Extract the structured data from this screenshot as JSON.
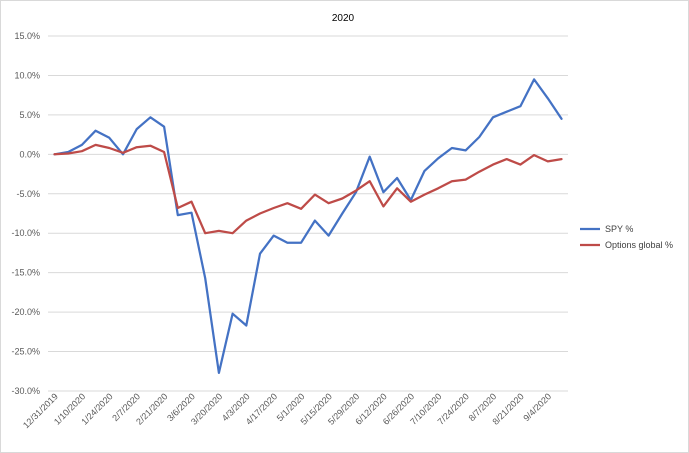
{
  "chart_data": {
    "type": "line",
    "title": "2020",
    "xlabel": "",
    "ylabel": "",
    "ylim": [
      -0.3,
      0.15
    ],
    "y_tick_values": [
      0.15,
      0.1,
      0.05,
      0.0,
      -0.05,
      -0.1,
      -0.15,
      -0.2,
      -0.25,
      -0.3
    ],
    "y_tick_labels": [
      "15.0%",
      "10.0%",
      "5.0%",
      "0.0%",
      "-5.0%",
      "-10.0%",
      "-15.0%",
      "-20.0%",
      "-25.0%",
      "-30.0%"
    ],
    "x": [
      "12/31/2019",
      "1/3/2020",
      "1/10/2020",
      "1/17/2020",
      "1/24/2020",
      "1/31/2020",
      "2/7/2020",
      "2/14/2020",
      "2/21/2020",
      "2/28/2020",
      "3/6/2020",
      "3/13/2020",
      "3/20/2020",
      "3/27/2020",
      "4/3/2020",
      "4/10/2020",
      "4/17/2020",
      "4/24/2020",
      "5/1/2020",
      "5/8/2020",
      "5/15/2020",
      "5/22/2020",
      "5/29/2020",
      "6/5/2020",
      "6/12/2020",
      "6/19/2020",
      "6/26/2020",
      "7/3/2020",
      "7/10/2020",
      "7/17/2020",
      "7/24/2020",
      "7/31/2020",
      "8/7/2020",
      "8/14/2020",
      "8/21/2020",
      "8/28/2020",
      "9/4/2020",
      "9/11/2020"
    ],
    "x_tick_labels": [
      "12/31/2019",
      "1/10/2020",
      "1/24/2020",
      "2/7/2020",
      "2/21/2020",
      "3/6/2020",
      "3/20/2020",
      "4/3/2020",
      "4/17/2020",
      "5/1/2020",
      "5/15/2020",
      "5/29/2020",
      "6/12/2020",
      "6/26/2020",
      "7/10/2020",
      "7/24/2020",
      "8/7/2020",
      "8/21/2020",
      "9/4/2020"
    ],
    "series": [
      {
        "name": "SPY %",
        "color": "#4472c4",
        "values": [
          0.0,
          0.003,
          0.012,
          0.03,
          0.021,
          0.0,
          0.032,
          0.047,
          0.035,
          -0.077,
          -0.074,
          -0.157,
          -0.277,
          -0.202,
          -0.217,
          -0.126,
          -0.103,
          -0.112,
          -0.112,
          -0.084,
          -0.103,
          -0.075,
          -0.048,
          -0.003,
          -0.048,
          -0.03,
          -0.058,
          -0.021,
          -0.005,
          0.008,
          0.005,
          0.022,
          0.047,
          0.054,
          0.061,
          0.095,
          0.071,
          0.045
        ]
      },
      {
        "name": "Options global %",
        "color": "#be4b48",
        "values": [
          0.0,
          0.001,
          0.004,
          0.012,
          0.008,
          0.002,
          0.009,
          0.011,
          0.003,
          -0.068,
          -0.06,
          -0.1,
          -0.097,
          -0.1,
          -0.084,
          -0.075,
          -0.068,
          -0.062,
          -0.069,
          -0.051,
          -0.062,
          -0.056,
          -0.046,
          -0.034,
          -0.066,
          -0.043,
          -0.06,
          -0.051,
          -0.043,
          -0.034,
          -0.032,
          -0.022,
          -0.013,
          -0.006,
          -0.013,
          -0.001,
          -0.009,
          -0.006
        ]
      }
    ],
    "grid": true,
    "legend": "right"
  }
}
